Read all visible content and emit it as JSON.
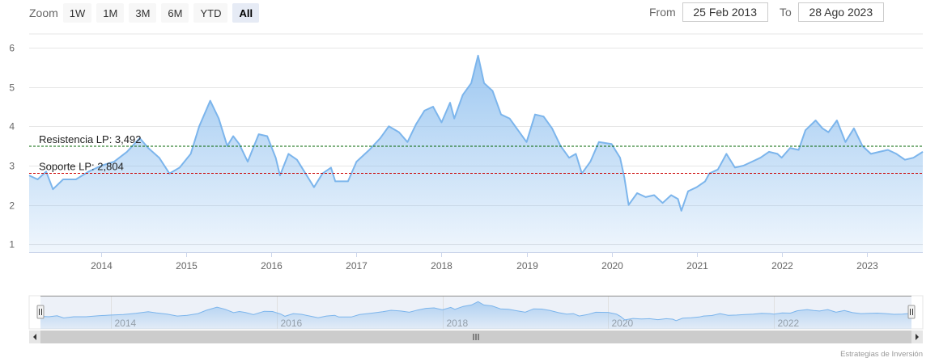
{
  "zoom": {
    "label": "Zoom",
    "buttons": [
      "1W",
      "1M",
      "3M",
      "6M",
      "YTD",
      "All"
    ],
    "active": "All"
  },
  "range": {
    "from_label": "From",
    "from_value": "25 Feb 2013",
    "to_label": "To",
    "to_value": "28 Ago 2023"
  },
  "credit": "Estrategias de Inversión",
  "colors": {
    "series": "#7cb5ec",
    "resistance": "#006400",
    "support": "#cc0000",
    "navigator_mask": "#ccd6eb"
  },
  "chart_data": {
    "type": "area",
    "title": "",
    "xlabel": "",
    "ylabel": "",
    "xlim": [
      2013.15,
      2023.66
    ],
    "ylim": [
      0.8,
      6.35
    ],
    "yticks": [
      1,
      2,
      3,
      4,
      5,
      6
    ],
    "xticks": [
      2014,
      2015,
      2016,
      2017,
      2018,
      2019,
      2020,
      2021,
      2022,
      2023
    ],
    "navigator_ticks": [
      2014,
      2016,
      2018,
      2020,
      2022
    ],
    "grid": true,
    "series": [
      {
        "values": [
          [
            2013.15,
            2.75
          ],
          [
            2013.25,
            2.65
          ],
          [
            2013.35,
            2.85
          ],
          [
            2013.43,
            2.4
          ],
          [
            2013.55,
            2.65
          ],
          [
            2013.7,
            2.65
          ],
          [
            2013.85,
            2.85
          ],
          [
            2014.0,
            3.0
          ],
          [
            2014.15,
            3.1
          ],
          [
            2014.3,
            3.35
          ],
          [
            2014.45,
            3.7
          ],
          [
            2014.55,
            3.45
          ],
          [
            2014.68,
            3.2
          ],
          [
            2014.8,
            2.8
          ],
          [
            2014.92,
            2.95
          ],
          [
            2015.05,
            3.3
          ],
          [
            2015.15,
            4.0
          ],
          [
            2015.28,
            4.65
          ],
          [
            2015.38,
            4.2
          ],
          [
            2015.48,
            3.5
          ],
          [
            2015.55,
            3.75
          ],
          [
            2015.62,
            3.55
          ],
          [
            2015.72,
            3.1
          ],
          [
            2015.85,
            3.8
          ],
          [
            2015.95,
            3.75
          ],
          [
            2016.05,
            3.2
          ],
          [
            2016.1,
            2.75
          ],
          [
            2016.2,
            3.3
          ],
          [
            2016.3,
            3.15
          ],
          [
            2016.4,
            2.8
          ],
          [
            2016.5,
            2.45
          ],
          [
            2016.6,
            2.8
          ],
          [
            2016.7,
            2.95
          ],
          [
            2016.75,
            2.6
          ],
          [
            2016.9,
            2.6
          ],
          [
            2017.0,
            3.1
          ],
          [
            2017.15,
            3.4
          ],
          [
            2017.28,
            3.7
          ],
          [
            2017.38,
            4.0
          ],
          [
            2017.5,
            3.85
          ],
          [
            2017.6,
            3.6
          ],
          [
            2017.7,
            4.05
          ],
          [
            2017.8,
            4.4
          ],
          [
            2017.9,
            4.5
          ],
          [
            2018.0,
            4.1
          ],
          [
            2018.1,
            4.6
          ],
          [
            2018.15,
            4.2
          ],
          [
            2018.25,
            4.8
          ],
          [
            2018.35,
            5.1
          ],
          [
            2018.43,
            5.8
          ],
          [
            2018.5,
            5.1
          ],
          [
            2018.6,
            4.9
          ],
          [
            2018.7,
            4.3
          ],
          [
            2018.8,
            4.2
          ],
          [
            2018.9,
            3.9
          ],
          [
            2019.0,
            3.6
          ],
          [
            2019.1,
            4.3
          ],
          [
            2019.2,
            4.25
          ],
          [
            2019.3,
            3.95
          ],
          [
            2019.4,
            3.5
          ],
          [
            2019.5,
            3.2
          ],
          [
            2019.58,
            3.3
          ],
          [
            2019.65,
            2.8
          ],
          [
            2019.75,
            3.1
          ],
          [
            2019.85,
            3.6
          ],
          [
            2020.0,
            3.55
          ],
          [
            2020.1,
            3.2
          ],
          [
            2020.15,
            2.7
          ],
          [
            2020.2,
            2.0
          ],
          [
            2020.3,
            2.3
          ],
          [
            2020.4,
            2.2
          ],
          [
            2020.5,
            2.25
          ],
          [
            2020.6,
            2.05
          ],
          [
            2020.7,
            2.25
          ],
          [
            2020.78,
            2.15
          ],
          [
            2020.82,
            1.85
          ],
          [
            2020.9,
            2.35
          ],
          [
            2021.0,
            2.45
          ],
          [
            2021.1,
            2.6
          ],
          [
            2021.15,
            2.8
          ],
          [
            2021.25,
            2.9
          ],
          [
            2021.35,
            3.3
          ],
          [
            2021.45,
            2.95
          ],
          [
            2021.55,
            3.0
          ],
          [
            2021.65,
            3.1
          ],
          [
            2021.75,
            3.2
          ],
          [
            2021.85,
            3.35
          ],
          [
            2021.95,
            3.3
          ],
          [
            2022.0,
            3.2
          ],
          [
            2022.1,
            3.45
          ],
          [
            2022.2,
            3.4
          ],
          [
            2022.28,
            3.9
          ],
          [
            2022.4,
            4.15
          ],
          [
            2022.48,
            3.95
          ],
          [
            2022.55,
            3.85
          ],
          [
            2022.65,
            4.15
          ],
          [
            2022.75,
            3.6
          ],
          [
            2022.85,
            3.95
          ],
          [
            2022.95,
            3.5
          ],
          [
            2023.05,
            3.3
          ],
          [
            2023.15,
            3.35
          ],
          [
            2023.25,
            3.4
          ],
          [
            2023.35,
            3.3
          ],
          [
            2023.45,
            3.15
          ],
          [
            2023.55,
            3.2
          ],
          [
            2023.66,
            3.35
          ]
        ]
      }
    ],
    "plotlines": [
      {
        "label": "Resistencia LP: 3,492",
        "value": 3.492,
        "style": "dashed"
      },
      {
        "label": "Soporte LP: 2,804",
        "value": 2.804,
        "style": "dashed"
      }
    ]
  }
}
